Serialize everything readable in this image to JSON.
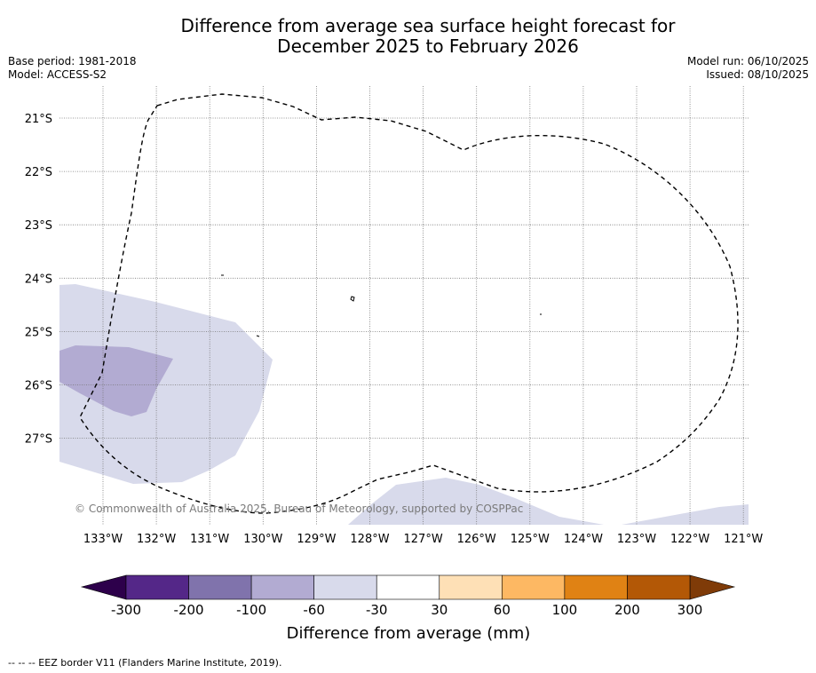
{
  "title_line1": "Difference from average sea surface height forecast for",
  "title_line2": "December 2025 to February 2026",
  "base_period": "Base period: 1981-2018",
  "model": "Model: ACCESS-S2",
  "model_run": "Model run: 06/10/2025",
  "issued": "Issued: 08/10/2025",
  "copyright": "© Commonwealth of Australia 2025, Bureau of Meteorology, supported by COSPPac",
  "legend_note": "-- -- -- EEZ border V11 (Flanders Marine Institute, 2019).",
  "lat_labels": [
    "21°S",
    "22°S",
    "23°S",
    "24°S",
    "25°S",
    "26°S",
    "27°S"
  ],
  "lon_labels": [
    "133°W",
    "132°W",
    "131°W",
    "130°W",
    "129°W",
    "128°W",
    "127°W",
    "126°W",
    "125°W",
    "124°W",
    "123°W",
    "122°W",
    "121°W"
  ],
  "colorbar": {
    "title": "Difference from average (mm)",
    "tick_labels": [
      "-300",
      "-200",
      "-100",
      "-60",
      "-30",
      "30",
      "60",
      "100",
      "200",
      "300"
    ],
    "under_color": "#2d004b",
    "over_color": "#7f3b08",
    "colors": [
      "#542788",
      "#8073ac",
      "#b2abd2",
      "#d8daeb",
      "#ffffff",
      "#fee0b6",
      "#fdb863",
      "#e08214",
      "#b35806"
    ]
  },
  "anomaly_colors": {
    "light": "#d8daeb",
    "medium": "#b2abd2"
  }
}
